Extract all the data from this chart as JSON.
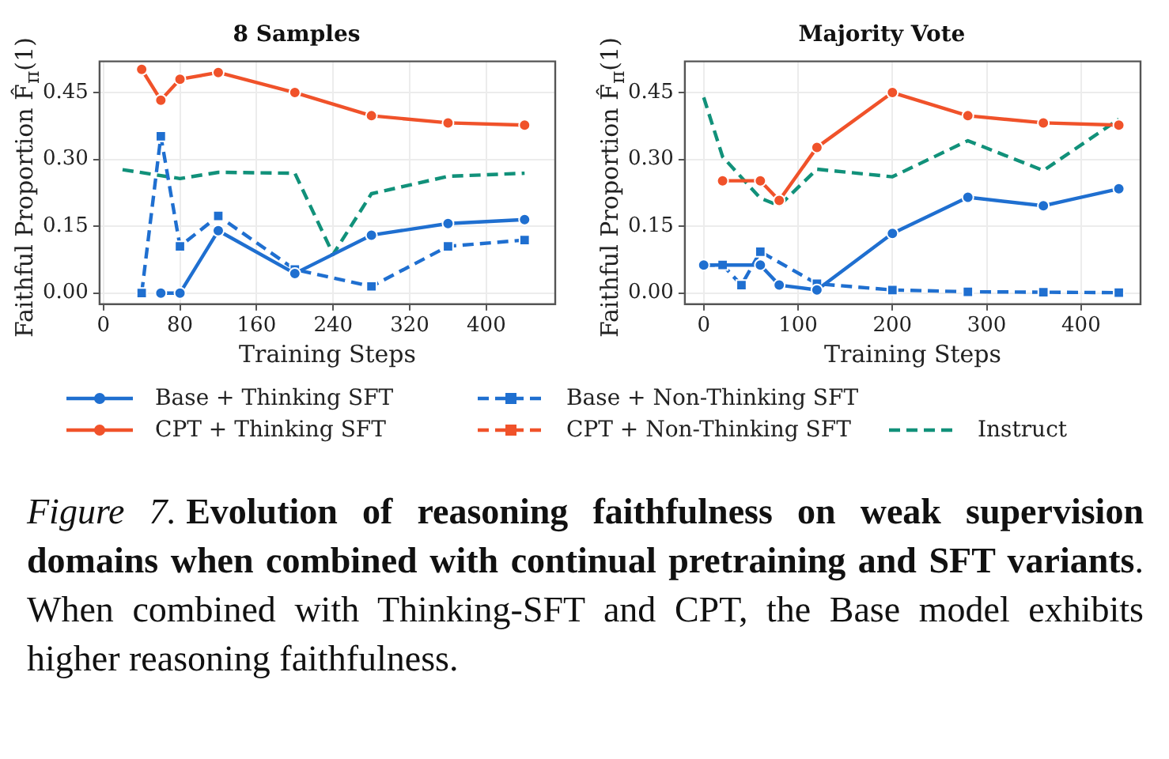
{
  "chart_data": [
    {
      "type": "line",
      "title": "8 Samples",
      "xlabel": "Training Steps",
      "ylabel": "Faithful Proportion F̂$_{π}$(1)",
      "xlim": [
        -4,
        472
      ],
      "ylim": [
        -0.025,
        0.52
      ],
      "xticks": [
        0,
        80,
        160,
        240,
        320,
        400
      ],
      "yticks": [
        {
          "value": 0,
          "label": "0.00"
        },
        {
          "value": 0.15,
          "label": "0.15"
        },
        {
          "value": 0.3,
          "label": "0.30"
        },
        {
          "value": 0.45,
          "label": "0.45"
        }
      ],
      "grid": true,
      "legend": "bottom",
      "series": [
        {
          "name": "Base + Thinking SFT",
          "color": "#1f6fd0",
          "marker": "circle",
          "line_style": "solid",
          "x": [
            60,
            80,
            120,
            200,
            280,
            360,
            440
          ],
          "values": [
            0,
            0,
            0.14,
            0.044,
            0.13,
            0.156,
            0.165
          ]
        },
        {
          "name": "Base + Non-Thinking SFT",
          "color": "#1f6fd0",
          "marker": "square",
          "line_style": "dashed",
          "x": [
            40,
            60,
            80,
            120,
            200,
            280,
            360,
            440
          ],
          "values": [
            0,
            0.352,
            0.105,
            0.173,
            0.053,
            0.015,
            0.105,
            0.119
          ]
        },
        {
          "name": "CPT + Thinking SFT",
          "color": "#f0522a",
          "marker": "circle",
          "line_style": "solid",
          "x": [
            40,
            60,
            80,
            120,
            200,
            280,
            360,
            440
          ],
          "values": [
            0.502,
            0.433,
            0.48,
            0.495,
            0.45,
            0.398,
            0.382,
            0.377
          ]
        },
        {
          "name": "CPT + Non-Thinking SFT",
          "color": "#f0522a",
          "marker": "square",
          "line_style": "dashed"
        },
        {
          "name": "Instruct",
          "color": "#11917a",
          "marker": "none",
          "line_style": "dashed",
          "x": [
            20,
            80,
            120,
            200,
            240,
            280,
            360,
            440
          ],
          "values": [
            0.277,
            0.257,
            0.271,
            0.269,
            0.087,
            0.223,
            0.262,
            0.269
          ]
        }
      ],
      "annotations": [
        "Figure 7.",
        "Evolution of reasoning faithfulness on weak supervision domains when combined with continual pretraining and SFT variants",
        ". When combined with Thinking-SFT and CPT, the Base model exhibits higher reasoning faithfulness."
      ]
    },
    {
      "type": "line",
      "title": "Majority Vote",
      "xlabel": "Training Steps",
      "ylabel": "Faithful Proportion F̂$_{π}$(1)",
      "xlim": [
        -20,
        463
      ],
      "ylim": [
        -0.025,
        0.52
      ],
      "xticks": [
        0,
        100,
        200,
        300,
        400
      ],
      "yticks": [
        {
          "value": 0,
          "label": "0.00"
        },
        {
          "value": 0.15,
          "label": "0.15"
        },
        {
          "value": 0.3,
          "label": "0.30"
        },
        {
          "value": 0.45,
          "label": "0.45"
        }
      ],
      "grid": true,
      "series": [
        {
          "color": "#1f6fd0",
          "marker": "circle",
          "line_style": "solid",
          "x": [
            0,
            60,
            80,
            120,
            200,
            280,
            360,
            440
          ],
          "values": [
            0.063,
            0.063,
            0.018,
            0.007,
            0.134,
            0.215,
            0.196,
            0.234
          ]
        },
        {
          "color": "#1f6fd0",
          "marker": "square",
          "line_style": "dashed",
          "x": [
            0,
            20,
            40,
            60,
            120,
            200,
            280,
            360,
            440
          ],
          "values": [
            0.063,
            0.063,
            0.018,
            0.093,
            0.021,
            0.007,
            0.003,
            0.002,
            0.001
          ]
        },
        {
          "color": "#f0522a",
          "marker": "circle",
          "line_style": "solid",
          "x": [
            20,
            60,
            80,
            120,
            200,
            280,
            360,
            440
          ],
          "values": [
            0.252,
            0.252,
            0.208,
            0.327,
            0.45,
            0.398,
            0.382,
            0.377
          ]
        },
        {
          "color": "#11917a",
          "marker": "none",
          "line_style": "dashed",
          "x": [
            0,
            20,
            60,
            80,
            120,
            200,
            280,
            360,
            440
          ],
          "values": [
            0.439,
            0.306,
            0.213,
            0.196,
            0.278,
            0.261,
            0.342,
            0.275,
            0.39
          ]
        }
      ]
    }
  ]
}
